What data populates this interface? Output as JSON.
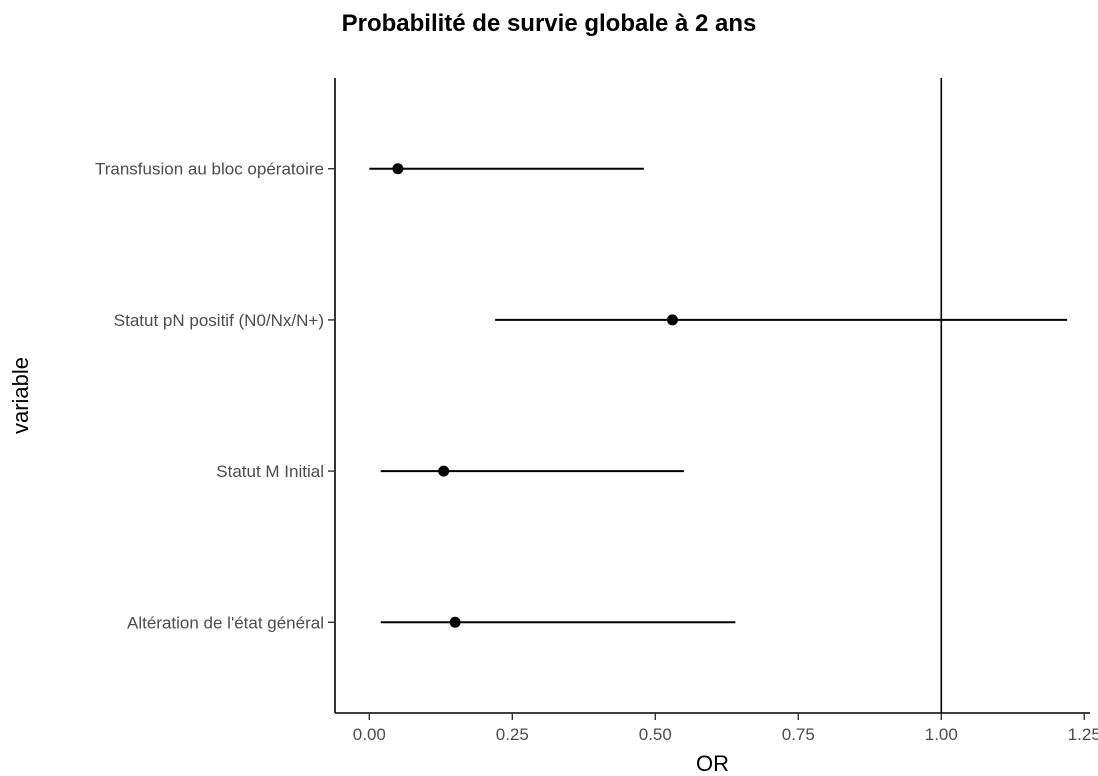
{
  "chart_data": {
    "type": "forest",
    "title": "Probabilité de survie globale à 2 ans",
    "xlabel": "OR",
    "ylabel": "variable",
    "xlim": [
      -0.06,
      1.26
    ],
    "x_ticks": [
      "0.00",
      "0.25",
      "0.50",
      "0.75",
      "1.00",
      "1.25"
    ],
    "x_tick_values": [
      0.0,
      0.25,
      0.5,
      0.75,
      1.0,
      1.25
    ],
    "reference_line": 1.0,
    "grid": false,
    "categories": [
      "Transfusion au bloc opératoire",
      "Statut pN positif (N0/Nx/N+)",
      "Statut M Initial",
      "Altération de l'état général"
    ],
    "estimate": [
      0.05,
      0.53,
      0.13,
      0.15
    ],
    "lower": [
      0.0,
      0.22,
      0.02,
      0.02
    ],
    "upper": [
      0.48,
      1.22,
      0.55,
      0.64
    ],
    "colors": {
      "points": "#000000",
      "lines": "#000000",
      "text": "#4d4d4d",
      "axis_title": "#000000"
    }
  }
}
